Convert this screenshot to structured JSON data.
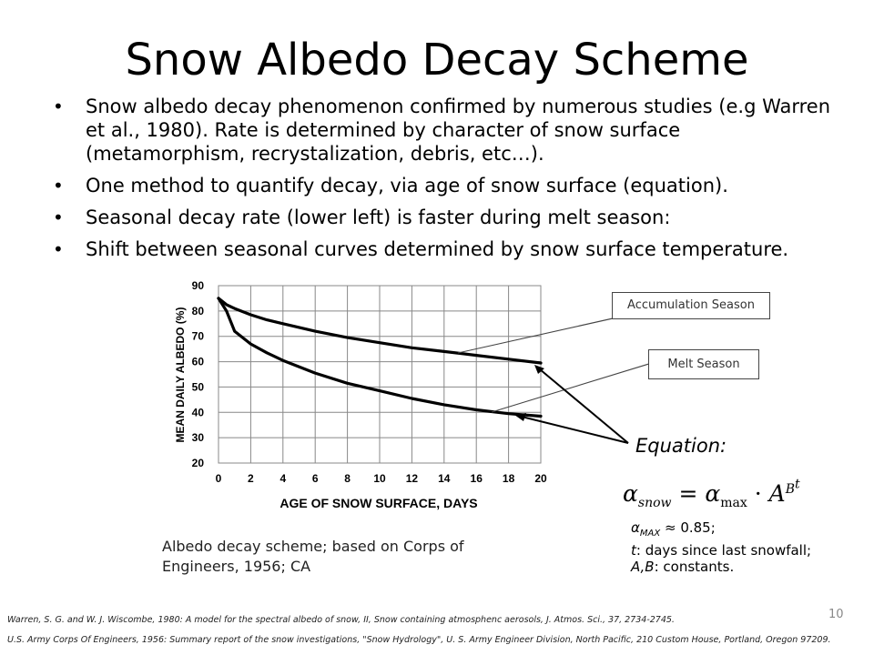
{
  "title": "Snow Albedo Decay Scheme",
  "bullets": [
    "Snow albedo decay phenomenon confirmed by numerous studies (e.g Warren et al., 1980).  Rate is determined by character of snow surface (metamorphism, recrystalization, debris, etc…).",
    "One method to quantify decay, via age of snow surface (equation).",
    "Seasonal decay rate (lower left) is faster during melt season:",
    "Shift between seasonal curves determined by snow surface temperature."
  ],
  "chart_data": {
    "type": "line",
    "xlabel": "AGE OF SNOW SURFACE, DAYS",
    "ylabel": "MEAN DAILY ALBEDO (%)",
    "xlim": [
      0,
      20
    ],
    "ylim": [
      20,
      90
    ],
    "xticks": [
      "0",
      "2",
      "4",
      "6",
      "8",
      "10",
      "12",
      "14",
      "16",
      "18",
      "20"
    ],
    "yticks": [
      "20",
      "30",
      "40",
      "50",
      "60",
      "70",
      "80",
      "90"
    ],
    "grid": true,
    "series": [
      {
        "name": "Accumulation Season",
        "x": [
          0,
          0.5,
          1,
          2,
          3,
          4,
          6,
          8,
          10,
          12,
          14,
          16,
          18,
          20
        ],
        "y": [
          85,
          82.5,
          81,
          78.5,
          76.5,
          75,
          72,
          69.5,
          67.5,
          65.5,
          64,
          62.5,
          61,
          59.5
        ]
      },
      {
        "name": "Melt Season",
        "x": [
          0,
          0.5,
          1,
          2,
          3,
          4,
          6,
          8,
          10,
          12,
          14,
          16,
          18,
          20
        ],
        "y": [
          85,
          80,
          72,
          67,
          63.5,
          60.5,
          55.5,
          51.5,
          48.5,
          45.5,
          43,
          41,
          39.5,
          38.5
        ]
      }
    ]
  },
  "caption": "Albedo decay scheme; based on Corps of Engineers, 1956; CA",
  "equation": {
    "label": "Equation:",
    "alpha": "α",
    "sub_snow": "snow",
    "eq": " = ",
    "sub_max": "max",
    "dot": " · ",
    "A": "A",
    "exp": "B",
    "exp_t": "t"
  },
  "definitions": {
    "amax_symbol": "α",
    "amax_sub": "MAX",
    "amax_value": " ≈ 0.85;",
    "t_symbol": "t",
    "t_desc": ": days since last snowfall;",
    "ab_symbol": "A,B",
    "ab_desc": ": constants."
  },
  "callouts": {
    "accumulation": "Accumulation Season",
    "melt": "Melt Season"
  },
  "references": [
    "Warren, S. G. and W. J. Wiscombe, 1980: A model for the spectral albedo of snow, II, Snow containing atmosphenc aerosols, J. Atmos. Sci., 37, 2734-2745.",
    "U.S. Army Corps Of Engineers, 1956: Summary report of the snow investigations, \"Snow  Hydrology\", U. S. Army Engineer Division, North Pacific, 210 Custom House, Portland, Oregon 97209."
  ],
  "page_number": "10"
}
